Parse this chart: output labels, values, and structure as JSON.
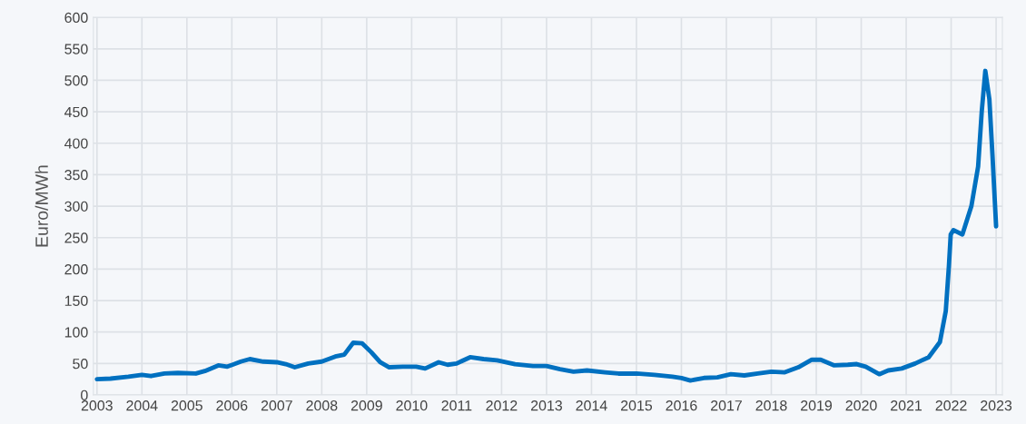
{
  "chart_data": {
    "type": "line",
    "ylabel": "Euro/MWh",
    "x": [
      2003.0,
      2003.3,
      2003.7,
      2004.0,
      2004.2,
      2004.5,
      2004.8,
      2005.2,
      2005.4,
      2005.7,
      2005.9,
      2006.2,
      2006.4,
      2006.7,
      2007.0,
      2007.2,
      2007.4,
      2007.7,
      2008.0,
      2008.3,
      2008.5,
      2008.7,
      2008.9,
      2009.1,
      2009.3,
      2009.5,
      2009.8,
      2010.1,
      2010.3,
      2010.6,
      2010.8,
      2011.0,
      2011.3,
      2011.6,
      2011.9,
      2012.3,
      2012.7,
      2013.0,
      2013.3,
      2013.6,
      2013.9,
      2014.3,
      2014.6,
      2015.0,
      2015.4,
      2015.8,
      2016.0,
      2016.2,
      2016.5,
      2016.8,
      2017.1,
      2017.4,
      2017.7,
      2018.0,
      2018.3,
      2018.6,
      2018.9,
      2019.1,
      2019.4,
      2019.7,
      2019.9,
      2020.1,
      2020.4,
      2020.6,
      2020.9,
      2021.2,
      2021.5,
      2021.75,
      2021.88,
      2021.95,
      2021.99,
      2022.05,
      2022.25,
      2022.45,
      2022.6,
      2022.68,
      2022.76,
      2022.85,
      2022.92,
      2023.0
    ],
    "series": [
      {
        "color": "#0070c0",
        "values": [
          25,
          26,
          29,
          32,
          30,
          34,
          35,
          34,
          38,
          47,
          45,
          53,
          57,
          53,
          52,
          49,
          44,
          50,
          53,
          61,
          64,
          83,
          82,
          68,
          52,
          44,
          45,
          45,
          42,
          52,
          48,
          50,
          60,
          57,
          55,
          49,
          46,
          46,
          41,
          37,
          39,
          36,
          34,
          34,
          32,
          29,
          27,
          23,
          27,
          28,
          33,
          31,
          34,
          37,
          36,
          44,
          56,
          56,
          47,
          48,
          49,
          45,
          33,
          39,
          42,
          50,
          60,
          84,
          133,
          205,
          255,
          262,
          255,
          300,
          363,
          450,
          515,
          470,
          380,
          268
        ]
      }
    ],
    "xlim": [
      2002.92,
      2023.14
    ],
    "xticks": [
      2003,
      2004,
      2005,
      2006,
      2007,
      2008,
      2009,
      2010,
      2011,
      2012,
      2013,
      2014,
      2015,
      2016,
      2017,
      2018,
      2019,
      2020,
      2021,
      2022,
      2023
    ],
    "ylim": [
      0,
      600
    ],
    "yticks": [
      0,
      50,
      100,
      150,
      200,
      250,
      300,
      350,
      400,
      450,
      500,
      550,
      600
    ],
    "grid": true,
    "marker": "none",
    "line_style": "solid",
    "legend": false
  }
}
